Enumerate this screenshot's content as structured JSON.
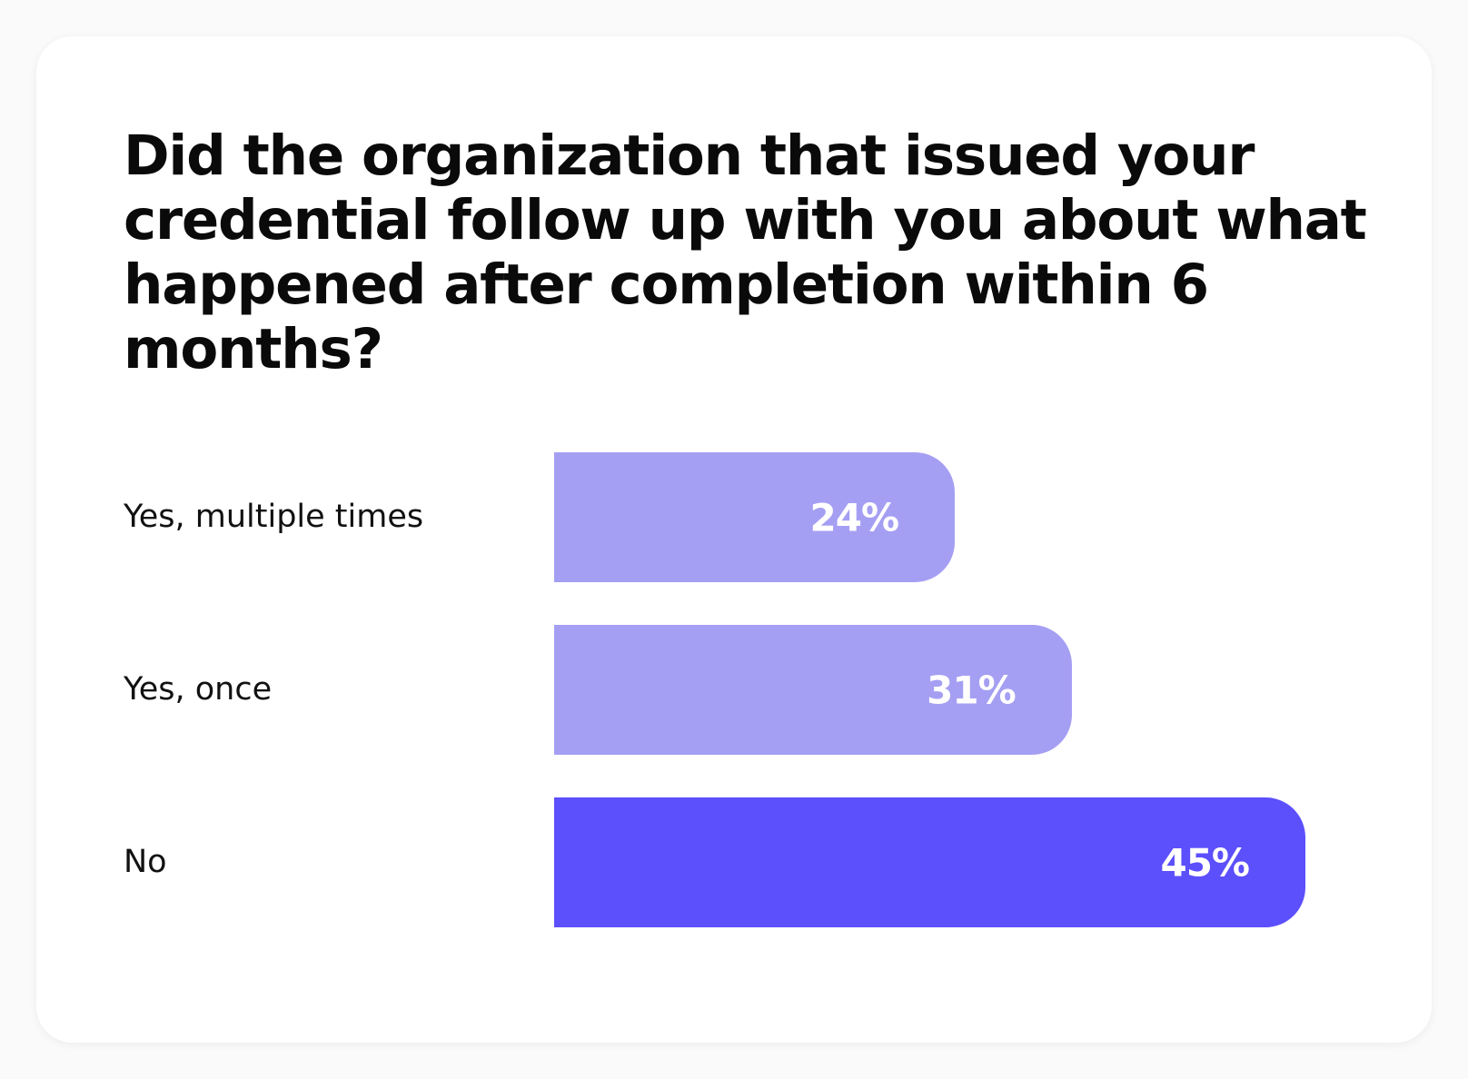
{
  "chart_data": {
    "type": "bar",
    "orientation": "horizontal",
    "title": "Did the organization that issued your credential follow up with you about what happened after completion within 6 months?",
    "categories": [
      "Yes, multiple times",
      "Yes, once",
      "No"
    ],
    "values": [
      24,
      31,
      45
    ],
    "value_labels": [
      "24%",
      "31%",
      "45%"
    ],
    "unit": "%",
    "xlim": [
      0,
      45
    ],
    "grid": false,
    "legend": "none",
    "colors": [
      "#a59ff3",
      "#a59ff3",
      "#5c4ffc"
    ]
  }
}
